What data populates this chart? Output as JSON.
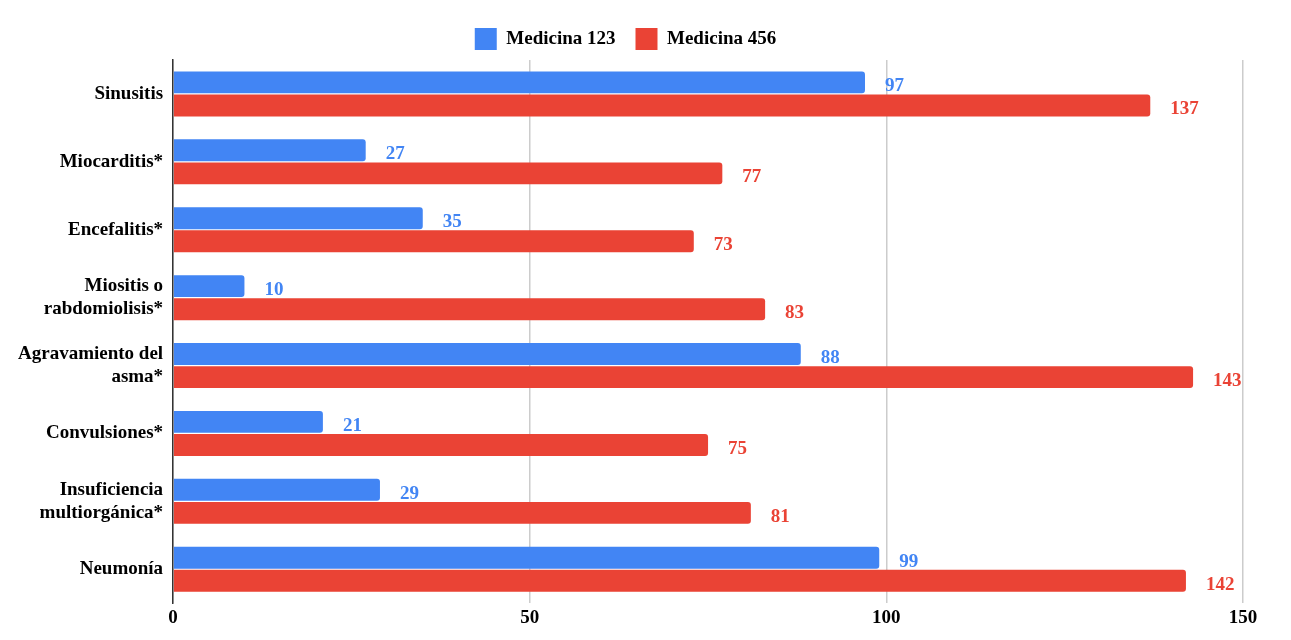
{
  "chart_data": {
    "type": "bar",
    "orientation": "horizontal",
    "categories": [
      "Sinusitis",
      "Miocarditis*",
      "Encefalitis*",
      "Miositis o rabdomiolisis*",
      "Agravamiento del asma*",
      "Convulsiones*",
      "Insuficiencia multiorgánica*",
      "Neumonía"
    ],
    "series": [
      {
        "name": "Medicina 123",
        "color": "#4285f4",
        "values": [
          97,
          27,
          35,
          10,
          88,
          21,
          29,
          99
        ]
      },
      {
        "name": "Medicina 456",
        "color": "#ea4335",
        "values": [
          137,
          77,
          73,
          83,
          143,
          75,
          81,
          142
        ]
      }
    ],
    "xlim": [
      0,
      150
    ],
    "xticks": [
      0,
      50,
      100,
      150
    ],
    "grid": "x",
    "legend": "top",
    "data_labels": true
  }
}
